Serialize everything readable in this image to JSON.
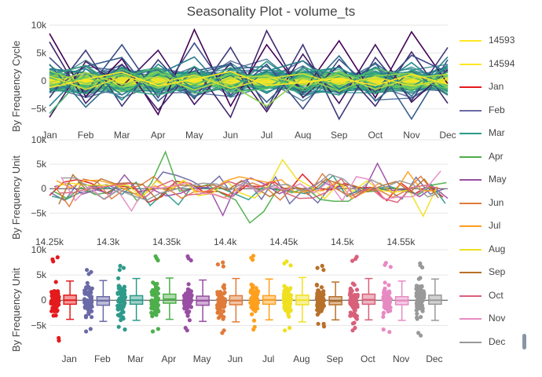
{
  "title": "Seasonality Plot - volume_ts",
  "panels": {
    "cycle_ylabel": "By Frequency Cycle",
    "unit_ylabel_mid": "By Frequency Unit",
    "unit_ylabel_bottom": "By Frequency Unit"
  },
  "legend_items": [
    {
      "label": "14593",
      "color": "#fde725"
    },
    {
      "label": "14594",
      "color": "#fde725"
    },
    {
      "label": "Jan",
      "color": "#e41a1c"
    },
    {
      "label": "Feb",
      "color": "#6a6aa8"
    },
    {
      "label": "Mar",
      "color": "#2e9a8a"
    },
    {
      "label": "Apr",
      "color": "#4daf4a"
    },
    {
      "label": "May",
      "color": "#984ea3"
    },
    {
      "label": "Jun",
      "color": "#e07b39"
    },
    {
      "label": "Jul",
      "color": "#ff9f1c"
    },
    {
      "label": "Aug",
      "color": "#f0e020"
    },
    {
      "label": "Sep",
      "color": "#b8712a"
    },
    {
      "label": "Oct",
      "color": "#d9607a"
    },
    {
      "label": "Nov",
      "color": "#e78ac3"
    },
    {
      "label": "Dec",
      "color": "#999999"
    }
  ],
  "chart_data": [
    {
      "type": "line",
      "name": "By Frequency Cycle",
      "categories": [
        "Jan",
        "Feb",
        "Mar",
        "Apr",
        "May",
        "Jun",
        "Jul",
        "Aug",
        "Sep",
        "Oct",
        "Nov",
        "Dec"
      ],
      "yticks": [
        -5000,
        0,
        5000,
        10000
      ],
      "ytick_labels": [
        "−5k",
        "0",
        "5k",
        "10k"
      ],
      "ylim": [
        -8000,
        10000
      ],
      "colorscale": [
        "#440154",
        "#3b528b",
        "#21918c",
        "#5ec962",
        "#fde725"
      ],
      "series": [
        {
          "values": [
            8500,
            -2800,
            4000,
            -6000,
            9200,
            -4500,
            6500,
            -2000,
            7200,
            -3000,
            8800,
            -500
          ]
        },
        {
          "values": [
            -6500,
            3500,
            -1000,
            5500,
            -4200,
            3200,
            -5500,
            4800,
            -4000,
            6500,
            -3800,
            2000
          ]
        },
        {
          "values": [
            7000,
            -4000,
            3000,
            -5200,
            2500,
            -6500,
            9000,
            -3000,
            2800,
            -4500,
            5200,
            -4000
          ]
        },
        {
          "values": [
            -3000,
            5500,
            -4500,
            3800,
            -3200,
            6000,
            -5000,
            6500,
            -6800,
            4200,
            -3500,
            6000
          ]
        },
        {
          "values": [
            4200,
            -2000,
            6500,
            -3000,
            6800,
            -2500,
            3000,
            -5000,
            3900,
            -2000,
            4600,
            1500
          ]
        },
        {
          "values": [
            -2000,
            2600,
            4200,
            -3600,
            1800,
            3000,
            -3800,
            2500,
            -2200,
            3300,
            -6800,
            3800
          ]
        },
        {
          "values": [
            3000,
            -4700,
            1500,
            2000,
            -3000,
            2200,
            2600,
            -2400,
            4500,
            -3600,
            1800,
            -2500
          ]
        },
        {
          "values": [
            -4500,
            2200,
            -2500,
            1200,
            4300,
            -2800,
            1800,
            3600,
            -1500,
            2400,
            -2700,
            4300
          ]
        },
        {
          "values": [
            2200,
            1500,
            -3400,
            3000,
            -1500,
            1000,
            -2200,
            1500,
            2400,
            -1200,
            3300,
            -1800
          ]
        },
        {
          "values": [
            -1500,
            -2200,
            2500,
            -1800,
            2600,
            -1600,
            3500,
            -1200,
            -2500,
            1600,
            -1000,
            2500
          ]
        },
        {
          "values": [
            1000,
            2800,
            -1600,
            -2500,
            -800,
            2400,
            -1200,
            2300,
            1300,
            -2300,
            2000,
            -800
          ]
        },
        {
          "values": [
            -5800,
            1200,
            800,
            2300,
            -2200,
            -900,
            1400,
            -1800,
            800,
            1100,
            -1800,
            1600
          ]
        },
        {
          "values": [
            600,
            -1200,
            2100,
            -600,
            1500,
            -2000,
            -1400,
            900,
            -900,
            2200,
            700,
            -1500
          ]
        },
        {
          "values": [
            -800,
            600,
            -1000,
            1500,
            -600,
            1200,
            600,
            -1400,
            1600,
            -600,
            -1200,
            900
          ]
        },
        {
          "values": [
            1800,
            -500,
            1200,
            -1300,
            800,
            -700,
            -4500,
            600,
            -1800,
            900,
            1400,
            -1000
          ]
        },
        {
          "values": [
            -300,
            1500,
            -600,
            800,
            -1600,
            500,
            900,
            -500,
            1000,
            -1500,
            500,
            1200
          ]
        },
        {
          "values": [
            900,
            -1500,
            700,
            -400,
            1100,
            -1300,
            400,
            1300,
            -600,
            700,
            -900,
            300
          ]
        },
        {
          "values": [
            -1200,
            300,
            1600,
            -900,
            300,
            1700,
            -800,
            -300,
            500,
            -800,
            1200,
            -600
          ]
        }
      ]
    },
    {
      "type": "line",
      "name": "By Frequency Unit",
      "xlim": [
        14250,
        14590
      ],
      "xticks": [
        14250,
        14300,
        14350,
        14400,
        14450,
        14500,
        14550
      ],
      "xtick_labels": [
        "14.25k",
        "14.3k",
        "14.35k",
        "14.4k",
        "14.45k",
        "14.5k",
        "14.55k"
      ],
      "yticks": [
        -5000,
        0,
        5000,
        10000
      ],
      "ytick_labels": [
        "−5k",
        "0",
        "5k",
        "10k"
      ],
      "ylim": [
        -8000,
        10000
      ],
      "value_range": [
        -7000,
        8500
      ]
    },
    {
      "type": "box",
      "name": "By Frequency Unit",
      "categories": [
        "Jan",
        "Feb",
        "Mar",
        "Apr",
        "May",
        "Jun",
        "Jul",
        "Aug",
        "Sep",
        "Oct",
        "Nov",
        "Dec"
      ],
      "yticks": [
        -5000,
        0,
        5000,
        10000
      ],
      "ytick_labels": [
        "−5k",
        "0",
        "5k",
        "10k"
      ],
      "ylim": [
        -9000,
        10000
      ],
      "boxes": [
        {
          "name": "Jan",
          "q1": -800,
          "median": 0,
          "q3": 1000,
          "whisker_low": -3800,
          "whisker_high": 3800,
          "min": -8000,
          "max": 8500
        },
        {
          "name": "Feb",
          "q1": -1000,
          "median": -100,
          "q3": 700,
          "whisker_low": -4200,
          "whisker_high": 3900,
          "min": -6200,
          "max": 6000
        },
        {
          "name": "Mar",
          "q1": -800,
          "median": 0,
          "q3": 900,
          "whisker_low": -4000,
          "whisker_high": 4300,
          "min": -5800,
          "max": 6800
        },
        {
          "name": "Apr",
          "q1": -600,
          "median": 200,
          "q3": 1200,
          "whisker_low": -3800,
          "whisker_high": 4400,
          "min": -6200,
          "max": 8700
        },
        {
          "name": "May",
          "q1": -1000,
          "median": -100,
          "q3": 800,
          "whisker_low": -4200,
          "whisker_high": 4000,
          "min": -6000,
          "max": 8700
        },
        {
          "name": "Jun",
          "q1": -900,
          "median": -100,
          "q3": 900,
          "whisker_low": -4300,
          "whisker_high": 4300,
          "min": -6500,
          "max": 7500
        },
        {
          "name": "Jul",
          "q1": -800,
          "median": 100,
          "q3": 900,
          "whisker_low": -3900,
          "whisker_high": 4200,
          "min": -5800,
          "max": 8800
        },
        {
          "name": "Aug",
          "q1": -900,
          "median": 0,
          "q3": 1000,
          "whisker_low": -4300,
          "whisker_high": 4500,
          "min": -6000,
          "max": 7700
        },
        {
          "name": "Sep",
          "q1": -900,
          "median": -200,
          "q3": 700,
          "whisker_low": -3900,
          "whisker_high": 3600,
          "min": -5200,
          "max": 6800
        },
        {
          "name": "Oct",
          "q1": -800,
          "median": 100,
          "q3": 1200,
          "whisker_low": -3900,
          "whisker_high": 4300,
          "min": -6000,
          "max": 8600
        },
        {
          "name": "Nov",
          "q1": -900,
          "median": -100,
          "q3": 700,
          "whisker_low": -4000,
          "whisker_high": 3800,
          "min": -6300,
          "max": 7400
        },
        {
          "name": "Dec",
          "q1": -800,
          "median": 0,
          "q3": 1000,
          "whisker_low": -4000,
          "whisker_high": 4200,
          "min": -7000,
          "max": 7300
        }
      ]
    }
  ]
}
